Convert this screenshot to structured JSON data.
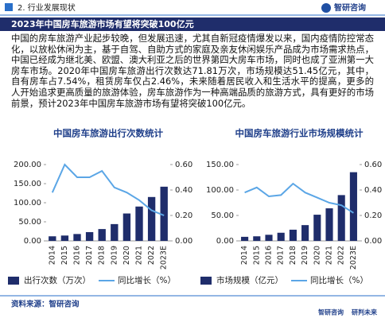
{
  "header": {
    "section": "2. 行业发展现状",
    "logo": "智研咨询"
  },
  "title": "2023年中国房车旅游市场有望将突破100亿元",
  "paragraph": "中国的房车旅游产业起步较晚，但发展迅速，尤其自新冠疫情爆发以来，国内疫情防控常态化，以放松休闲为主，基于自驾、自助方式的家庭及亲友休闲娱乐产品成为市场需求热点，中国已经成为继北美、欧盟、澳大利亚之后的世界第四大房车市场，同时也成了亚洲第一大房车市场。2020年中国房车旅游出行次数达71.81万次，市场规模达51.45亿元，其中，自有房车占7.54%，租赁房车仅占2.46%，未来随着居民收入和生活水平的提高，更多的人开始追求更高质量的旅游体验，房车旅游作为一种高端品质的旅游方式，具有更好的市场前景，预计2023年中国房车旅游市场有望将突破100亿元。",
  "chart_data": [
    {
      "type": "bar",
      "title": "中国房车旅游出行次数统计",
      "categories": [
        "2014",
        "2015",
        "2016",
        "2017",
        "2018",
        "2019",
        "2020",
        "2021",
        "2022",
        "2023E"
      ],
      "series": [
        {
          "name": "出行次数（万次）",
          "type": "bar",
          "color": "#1f2d6b",
          "values": [
            12,
            14,
            18,
            23,
            31,
            44,
            71.81,
            90,
            115,
            142
          ]
        },
        {
          "name": "同比增长（%）",
          "type": "line",
          "axis": "y2",
          "color": "#5ba6e6",
          "values": [
            0.38,
            0.6,
            0.5,
            0.5,
            0.55,
            0.42,
            0.38,
            0.32,
            0.24,
            0.2
          ]
        }
      ],
      "ylim": [
        0,
        200
      ],
      "yticks": [
        {
          "value": 0,
          "label": "0.00"
        },
        {
          "value": 50,
          "label": "50.00"
        },
        {
          "value": 100,
          "label": "100.00"
        },
        {
          "value": 150,
          "label": "150.00"
        },
        {
          "value": 200,
          "label": "200.00"
        }
      ],
      "y2lim": [
        0,
        0.6
      ],
      "y2ticks": [
        {
          "value": 0,
          "label": "0.00"
        },
        {
          "value": 0.2,
          "label": "0.20"
        },
        {
          "value": 0.4,
          "label": "0.40"
        },
        {
          "value": 0.6,
          "label": "0.60"
        }
      ]
    },
    {
      "type": "bar",
      "title": "中国房车旅游行业市场规模统计",
      "categories": [
        "2014",
        "2015",
        "2016",
        "2017",
        "2018",
        "2019",
        "2020",
        "2021",
        "2022",
        "2023E"
      ],
      "series": [
        {
          "name": "市场规模（亿元）",
          "type": "bar",
          "color": "#1f2d6b",
          "values": [
            8,
            9,
            12,
            16,
            22,
            31,
            51.45,
            64,
            90,
            135
          ]
        },
        {
          "name": "同比增长（%）",
          "type": "line",
          "axis": "y2",
          "color": "#5ba6e6",
          "values": [
            0.38,
            0.42,
            0.35,
            0.36,
            0.45,
            0.38,
            0.34,
            0.3,
            0.28,
            0.22
          ]
        }
      ],
      "ylim": [
        0,
        150
      ],
      "yticks": [
        {
          "value": 0,
          "label": "0.00"
        },
        {
          "value": 50,
          "label": "50.00"
        },
        {
          "value": 100,
          "label": "100.00"
        },
        {
          "value": 150,
          "label": "150.00"
        }
      ],
      "y2lim": [
        0,
        0.6
      ],
      "y2ticks": [
        {
          "value": 0,
          "label": "0.00"
        },
        {
          "value": 0.2,
          "label": "0.20"
        },
        {
          "value": 0.4,
          "label": "0.40"
        },
        {
          "value": 0.6,
          "label": "0.60"
        }
      ]
    }
  ],
  "source": "资料来源：智研咨询",
  "footer": {
    "brand": "智研咨询",
    "slogan": "研判未来"
  }
}
